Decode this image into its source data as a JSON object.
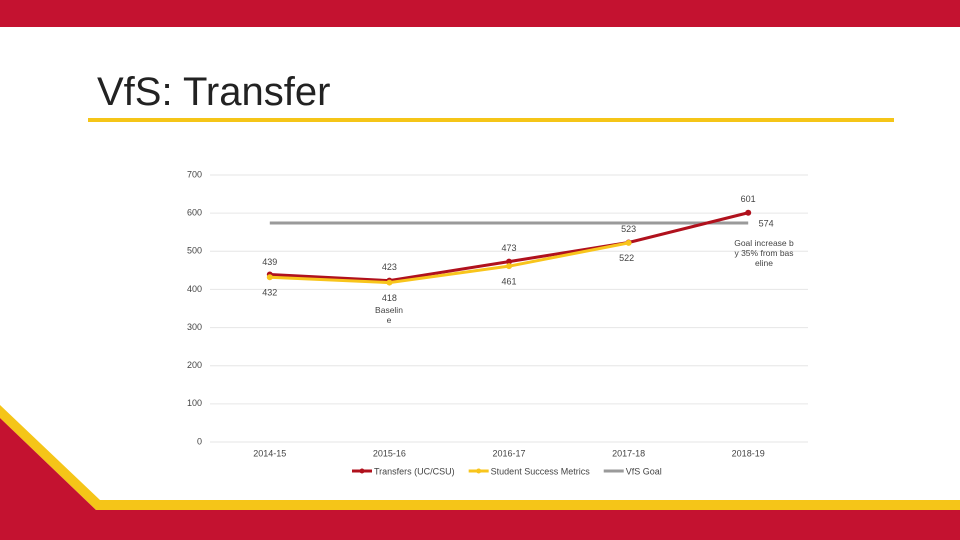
{
  "chart_data": {
    "type": "line",
    "title": "VfS: Transfer",
    "categories": [
      "2014-15",
      "2015-16",
      "2016-17",
      "2017-18",
      "2018-19"
    ],
    "series": [
      {
        "name": "Transfers (UC/CSU)",
        "color": "#b0111d",
        "values": [
          439,
          423,
          473,
          523,
          601
        ]
      },
      {
        "name": "Student Success Metrics",
        "color": "#f8c51c",
        "values": [
          432,
          418,
          461,
          522,
          null
        ]
      },
      {
        "name": "VfS Goal",
        "color": "#9a9a9a",
        "values": [
          574,
          574,
          574,
          574,
          574
        ]
      }
    ],
    "annotations": [
      "Baseline",
      "Goal increase by 35% from baseline"
    ],
    "ylim": [
      0,
      700
    ],
    "yticks": [
      0,
      100,
      200,
      300,
      400,
      500,
      600,
      700
    ],
    "grid": true,
    "legend": "bottom"
  }
}
